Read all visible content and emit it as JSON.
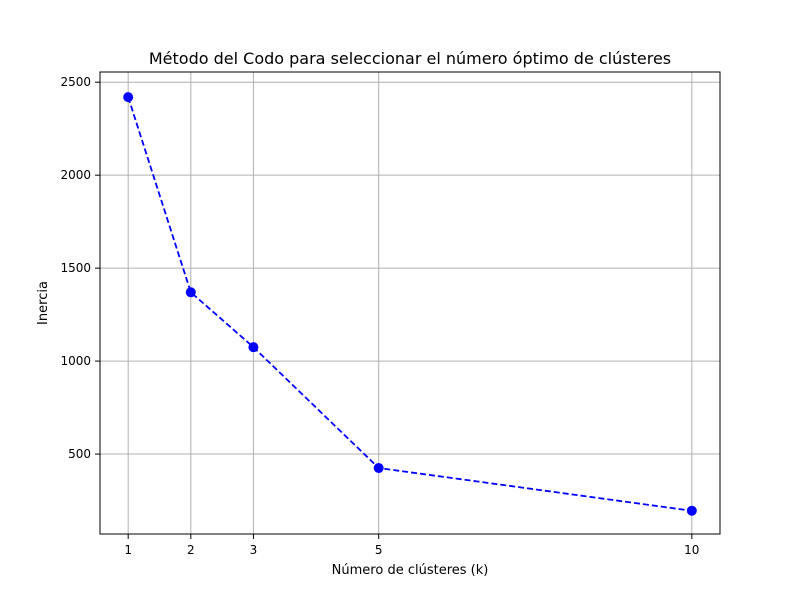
{
  "chart_data": {
    "type": "line",
    "title": "Método del Codo para seleccionar el número óptimo de clústeres",
    "xlabel": "Número de clústeres (k)",
    "ylabel": "Inercia",
    "x": [
      1,
      2,
      3,
      5,
      10
    ],
    "x_ticks": [
      1,
      2,
      3,
      5,
      10
    ],
    "y_ticks": [
      500,
      1000,
      1500,
      2000,
      2500
    ],
    "xlim": [
      0.55,
      10.45
    ],
    "ylim": [
      70,
      2555
    ],
    "grid": true,
    "series": [
      {
        "values": [
          2420,
          1370,
          1075,
          425,
          195
        ],
        "color": "#0000ff",
        "line_style": "dashed",
        "marker": "circle"
      }
    ]
  }
}
